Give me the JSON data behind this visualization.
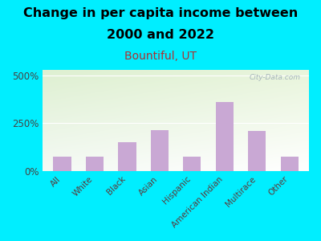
{
  "categories": [
    "All",
    "White",
    "Black",
    "Asian",
    "Hispanic",
    "American Indian",
    "Multirace",
    "Other"
  ],
  "values": [
    75,
    75,
    150,
    215,
    75,
    360,
    210,
    75
  ],
  "bar_color": "#c9a8d4",
  "title_line1": "Change in per capita income between",
  "title_line2": "2000 and 2022",
  "subtitle": "Bountiful, UT",
  "title_fontsize": 11.5,
  "subtitle_fontsize": 10,
  "subtitle_color": "#aa3333",
  "title_color": "#000000",
  "background_outer": "#00eeff",
  "yticks": [
    0,
    250,
    500
  ],
  "ylim": [
    0,
    530
  ],
  "watermark": "City-Data.com",
  "watermark_color": "#9aaab4"
}
